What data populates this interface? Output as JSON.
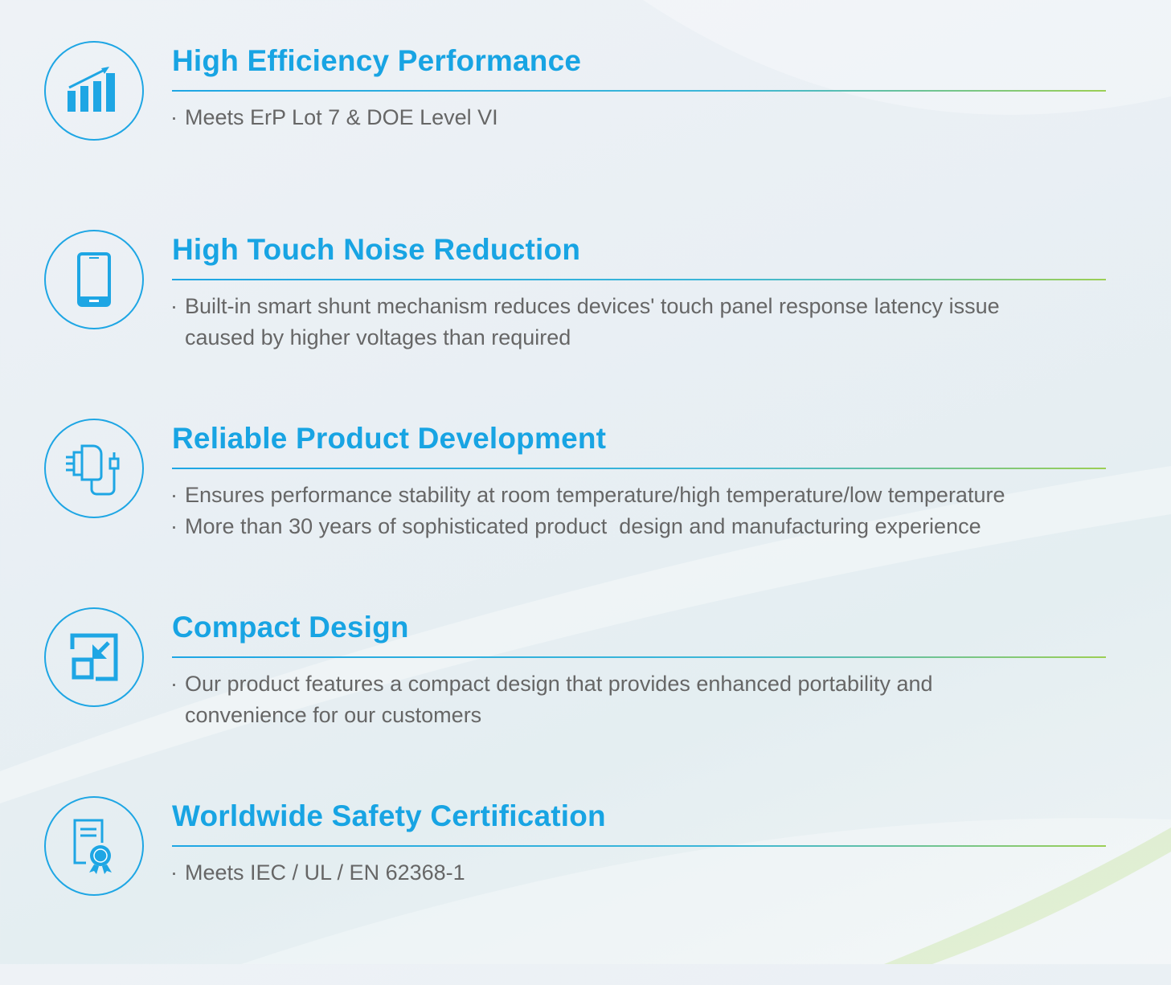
{
  "accent_color": "#18a4e3",
  "rule_gradient": [
    "#1ea6e4",
    "#9ccf55"
  ],
  "features": [
    {
      "icon": "bar-chart-growth-icon",
      "title": "High Efficiency Performance",
      "bullets": [
        "Meets ErP Lot 7 & DOE Level VI"
      ]
    },
    {
      "icon": "smartphone-icon",
      "title": "High Touch Noise Reduction",
      "bullets": [
        "Built-in smart shunt mechanism reduces devices' touch panel response latency issue\ncaused by higher voltages than required"
      ]
    },
    {
      "icon": "power-adapter-icon",
      "title": "Reliable Product Development",
      "bullets": [
        "Ensures performance stability at room temperature/high temperature/low temperature",
        "More than 30 years of sophisticated product  design and manufacturing experience"
      ]
    },
    {
      "icon": "compact-resize-icon",
      "title": "Compact Design",
      "bullets": [
        "Our product features a compact design that provides enhanced portability and\nconvenience for our customers"
      ]
    },
    {
      "icon": "certificate-icon",
      "title": "Worldwide Safety Certification",
      "bullets": [
        "Meets IEC / UL / EN 62368-1"
      ]
    }
  ]
}
